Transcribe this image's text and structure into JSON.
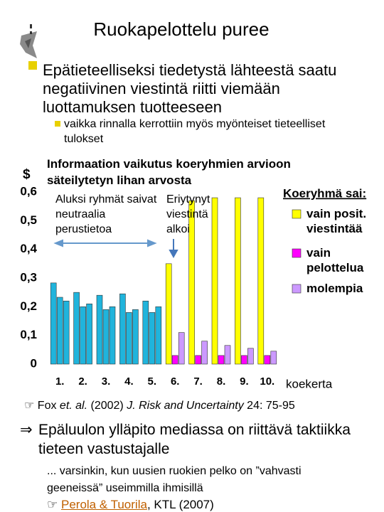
{
  "title": "Ruokapelottelu puree",
  "bullet": "Epätieteelliseksi tiedetystä lähteestä saatu negatiivinen viestintä riitti viemään luottamuksen tuotteeseen",
  "sub_bullet": "vaikka rinnalla kerrottiin myös myönteiset tieteelliset tulokset",
  "reference": {
    "icon": "☞",
    "parts": [
      "Fox ",
      "et. al.",
      " (2002) ",
      "J. Risk and Uncertainty",
      " 24: 75-95"
    ]
  },
  "conclusion": {
    "arrow": "⇒",
    "text": "Epäluulon ylläpito mediassa on riittävä taktiikka tieteen vastustajalle"
  },
  "note": "... varsinkin, kun uusien ruokien pelko on ”vahvasti geeneissä” useimmilla ihmisillä",
  "source": {
    "icon": "☞",
    "link": "Perola & Tuorila",
    "rest": ", KTL (2007)"
  },
  "chart_data": {
    "type": "bar",
    "title": "Informaation vaikutus koeryhmien arvioon säteilytetyn lihan arvosta",
    "y_label": "$",
    "x_label": "koekerta",
    "legend_title": "Koeryhmä sai:",
    "annotations": [
      "Aluksi ryhmät saivat neutraalia perustietoa",
      "Eriytynyt viestintä alkoi"
    ],
    "categories": [
      "1.",
      "2.",
      "3.",
      "4.",
      "5.",
      "6.",
      "7.",
      "8.",
      "9.",
      "10."
    ],
    "ylim": [
      0,
      0.6
    ],
    "yticks": [
      0,
      {
        "value": 0.1,
        "label": "0,1"
      },
      {
        "value": 0.2,
        "label": "0,2"
      },
      {
        "value": 0.3,
        "label": "0,3"
      },
      {
        "value": 0.4,
        "label": "0,4"
      },
      {
        "value": 0.5,
        "label": "0,5"
      },
      {
        "value": 0.6,
        "label": "0,6"
      }
    ],
    "series": [
      {
        "name": "vain posit. viestintää",
        "color": "#ffff00",
        "colors": [
          "#20b4dc",
          "#20b4dc",
          "#20b4dc",
          "#20b4dc",
          "#20b4dc",
          "#ffff00",
          "#ffff00",
          "#ffff00",
          "#ffff00",
          "#ffff00"
        ],
        "values": [
          0.283,
          0.25,
          0.24,
          0.245,
          0.22,
          0.35,
          0.57,
          0.58,
          0.58,
          0.58
        ]
      },
      {
        "name": "vain pelottelua",
        "color": "#ff00ff",
        "colors": [
          "#20b4dc",
          "#20b4dc",
          "#20b4dc",
          "#20b4dc",
          "#20b4dc",
          "#ff00ff",
          "#ff00ff",
          "#ff00ff",
          "#ff00ff",
          "#ff00ff"
        ],
        "values": [
          0.233,
          0.2,
          0.19,
          0.18,
          0.18,
          0.03,
          0.03,
          0.03,
          0.03,
          0.03
        ]
      },
      {
        "name": "molempia",
        "color": "#cc99ff",
        "colors": [
          "#20b4dc",
          "#20b4dc",
          "#20b4dc",
          "#20b4dc",
          "#20b4dc",
          "#cc99ff",
          "#cc99ff",
          "#cc99ff",
          "#cc99ff",
          "#cc99ff"
        ],
        "values": [
          0.22,
          0.21,
          0.2,
          0.19,
          0.2,
          0.11,
          0.08,
          0.065,
          0.055,
          0.045
        ]
      }
    ]
  }
}
